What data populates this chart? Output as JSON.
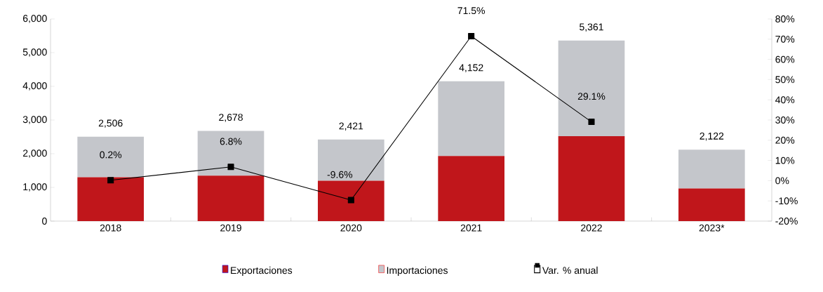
{
  "chart_data": {
    "type": "bar",
    "stacked": true,
    "categories": [
      "2018",
      "2019",
      "2020",
      "2021",
      "2022",
      "2023*"
    ],
    "series": [
      {
        "name": "Exportaciones",
        "color": "#c0161b",
        "values": [
          1300,
          1350,
          1200,
          1930,
          2520,
          970
        ]
      },
      {
        "name": "Importaciones",
        "color": "#c4c6cb",
        "values": [
          1206,
          1328,
          1221,
          2222,
          2841,
          1152
        ]
      },
      {
        "name": "Var. % anual",
        "type": "line",
        "axis": "y2",
        "color": "#000000",
        "marker": "square",
        "values": [
          0.2,
          6.8,
          -9.6,
          71.5,
          29.1,
          null
        ],
        "value_labels": [
          "0.2%",
          "6.8%",
          "-9.6%",
          "71.5%",
          "29.1%",
          null
        ]
      }
    ],
    "totals": [
      "2,506",
      "2,678",
      "2,421",
      "4,152",
      "5,361",
      "2,122"
    ],
    "ylim": [
      0,
      6000
    ],
    "yticks": [
      {
        "value": 0,
        "label": "0"
      },
      {
        "value": 1000,
        "label": "1,000"
      },
      {
        "value": 2000,
        "label": "2,000"
      },
      {
        "value": 3000,
        "label": "3,000"
      },
      {
        "value": 4000,
        "label": "4,000"
      },
      {
        "value": 5000,
        "label": "5,000"
      },
      {
        "value": 6000,
        "label": "6,000"
      }
    ],
    "y2lim": [
      -20,
      80
    ],
    "y2ticks": [
      {
        "value": -20,
        "label": "-20%"
      },
      {
        "value": -10,
        "label": "-10%"
      },
      {
        "value": 0,
        "label": "0%"
      },
      {
        "value": 10,
        "label": "10%"
      },
      {
        "value": 20,
        "label": "20%"
      },
      {
        "value": 30,
        "label": "30%"
      },
      {
        "value": 40,
        "label": "40%"
      },
      {
        "value": 50,
        "label": "50%"
      },
      {
        "value": 60,
        "label": "60%"
      },
      {
        "value": 70,
        "label": "70%"
      },
      {
        "value": 80,
        "label": "80%"
      }
    ],
    "legend": "bottom"
  }
}
